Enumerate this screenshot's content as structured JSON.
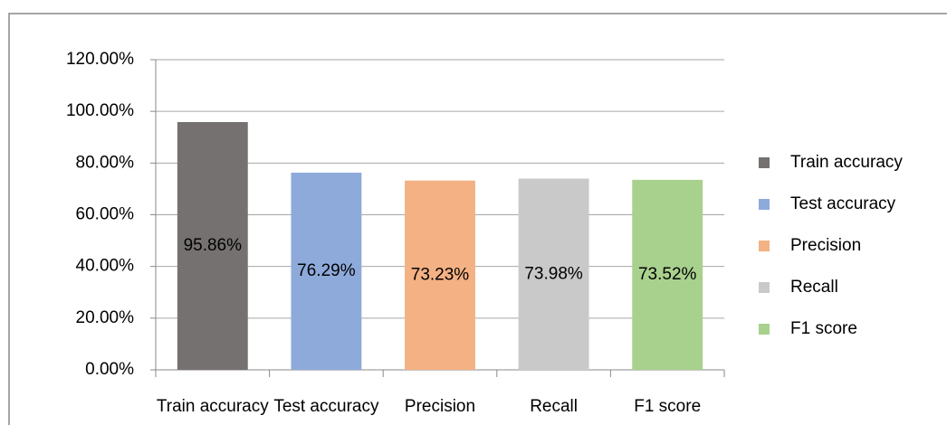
{
  "chart_data": {
    "type": "bar",
    "categories": [
      "Train accuracy",
      "Test accuracy",
      "Precision",
      "Recall",
      "F1 score"
    ],
    "values": [
      95.86,
      76.29,
      73.23,
      73.98,
      73.52
    ],
    "value_labels": [
      "95.86%",
      "76.29%",
      "73.23%",
      "73.98%",
      "73.52%"
    ],
    "colors": [
      "#767171",
      "#8eaadb",
      "#f4b183",
      "#c9c9c9",
      "#a9d18e"
    ],
    "ylim": [
      0,
      120
    ],
    "yticks": [
      {
        "value": 0,
        "label": "0.00%"
      },
      {
        "value": 20,
        "label": "20.00%"
      },
      {
        "value": 40,
        "label": "40.00%"
      },
      {
        "value": 60,
        "label": "60.00%"
      },
      {
        "value": 80,
        "label": "80.00%"
      },
      {
        "value": 100,
        "label": "100.00%"
      },
      {
        "value": 120,
        "label": "120.00%"
      }
    ],
    "grid": true,
    "legend": "right"
  }
}
